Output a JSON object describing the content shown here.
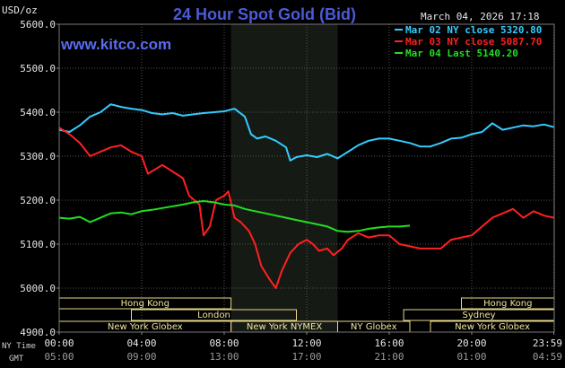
{
  "chart_data": {
    "type": "line",
    "title": "24 Hour Spot Gold (Bid)",
    "site": "www.kitco.com",
    "timestamp": "March 04, 2026 17:18",
    "ylabel": "USD/oz",
    "ylim": [
      4900,
      5600
    ],
    "y_ticks": [
      "5600.0",
      "5500.0",
      "5400.0",
      "5300.0",
      "5200.0",
      "5100.0",
      "5000.0",
      "4900.0"
    ],
    "xlim": [
      0,
      24
    ],
    "x_ticks_ny": [
      "00:00",
      "04:00",
      "08:00",
      "12:00",
      "16:00",
      "20:00",
      "23:59"
    ],
    "x_ticks_gmt": [
      "05:00",
      "09:00",
      "13:00",
      "17:00",
      "21:00",
      "01:00",
      "04:59"
    ],
    "x_tick_hours": [
      0,
      4,
      8,
      12,
      16,
      20,
      23.98
    ],
    "tz_labels": {
      "ny": "NY Time",
      "gmt": "GMT"
    },
    "nymex_window_hours": [
      8.33,
      13.5
    ],
    "grid": true,
    "legend_position": "top-right",
    "series": [
      {
        "name": "Mar 02 NY close 5320.80",
        "color": "#33ccff",
        "points": [
          [
            0,
            5360
          ],
          [
            0.5,
            5355
          ],
          [
            1,
            5370
          ],
          [
            1.5,
            5390
          ],
          [
            2,
            5400
          ],
          [
            2.5,
            5418
          ],
          [
            3,
            5412
          ],
          [
            3.5,
            5408
          ],
          [
            4,
            5405
          ],
          [
            4.5,
            5398
          ],
          [
            5,
            5395
          ],
          [
            5.5,
            5398
          ],
          [
            6,
            5392
          ],
          [
            6.5,
            5395
          ],
          [
            7,
            5398
          ],
          [
            7.5,
            5400
          ],
          [
            8,
            5402
          ],
          [
            8.5,
            5408
          ],
          [
            9,
            5390
          ],
          [
            9.3,
            5350
          ],
          [
            9.6,
            5340
          ],
          [
            10,
            5345
          ],
          [
            10.5,
            5335
          ],
          [
            11,
            5320
          ],
          [
            11.2,
            5290
          ],
          [
            11.5,
            5298
          ],
          [
            12,
            5302
          ],
          [
            12.5,
            5298
          ],
          [
            13,
            5305
          ],
          [
            13.5,
            5295
          ],
          [
            14,
            5310
          ],
          [
            14.5,
            5325
          ],
          [
            15,
            5335
          ],
          [
            15.5,
            5340
          ],
          [
            16,
            5340
          ],
          [
            16.5,
            5335
          ],
          [
            17,
            5330
          ],
          [
            17.5,
            5322
          ],
          [
            18,
            5322
          ],
          [
            18.5,
            5330
          ],
          [
            19,
            5340
          ],
          [
            19.5,
            5342
          ],
          [
            20,
            5350
          ],
          [
            20.5,
            5355
          ],
          [
            21,
            5375
          ],
          [
            21.5,
            5360
          ],
          [
            22,
            5365
          ],
          [
            22.5,
            5370
          ],
          [
            23,
            5368
          ],
          [
            23.5,
            5372
          ],
          [
            24,
            5366
          ]
        ]
      },
      {
        "name": "Mar 03 NY close 5087.70",
        "color": "#ff2020",
        "points": [
          [
            0,
            5365
          ],
          [
            0.5,
            5350
          ],
          [
            1,
            5330
          ],
          [
            1.5,
            5300
          ],
          [
            2,
            5310
          ],
          [
            2.5,
            5320
          ],
          [
            3,
            5325
          ],
          [
            3.5,
            5310
          ],
          [
            4,
            5300
          ],
          [
            4.3,
            5260
          ],
          [
            5,
            5280
          ],
          [
            5.5,
            5265
          ],
          [
            6,
            5250
          ],
          [
            6.3,
            5210
          ],
          [
            6.8,
            5190
          ],
          [
            7,
            5120
          ],
          [
            7.3,
            5140
          ],
          [
            7.6,
            5200
          ],
          [
            8,
            5210
          ],
          [
            8.2,
            5220
          ],
          [
            8.5,
            5160
          ],
          [
            8.8,
            5150
          ],
          [
            9.2,
            5130
          ],
          [
            9.5,
            5100
          ],
          [
            9.8,
            5050
          ],
          [
            10.2,
            5020
          ],
          [
            10.5,
            5000
          ],
          [
            10.8,
            5040
          ],
          [
            11.2,
            5080
          ],
          [
            11.6,
            5100
          ],
          [
            12,
            5110
          ],
          [
            12.3,
            5100
          ],
          [
            12.6,
            5085
          ],
          [
            13,
            5090
          ],
          [
            13.3,
            5075
          ],
          [
            13.7,
            5090
          ],
          [
            14,
            5110
          ],
          [
            14.5,
            5125
          ],
          [
            15,
            5115
          ],
          [
            15.5,
            5120
          ],
          [
            16,
            5120
          ],
          [
            16.5,
            5100
          ],
          [
            17,
            5095
          ],
          [
            17.5,
            5090
          ],
          [
            18,
            5090
          ],
          [
            18.5,
            5090
          ],
          [
            19,
            5110
          ],
          [
            19.5,
            5115
          ],
          [
            20,
            5120
          ],
          [
            20.5,
            5140
          ],
          [
            21,
            5160
          ],
          [
            21.5,
            5170
          ],
          [
            22,
            5180
          ],
          [
            22.5,
            5160
          ],
          [
            23,
            5175
          ],
          [
            23.5,
            5165
          ],
          [
            24,
            5160
          ]
        ]
      },
      {
        "name": "Mar 04 Last 5140.20",
        "color": "#22dd22",
        "points": [
          [
            0,
            5160
          ],
          [
            0.5,
            5158
          ],
          [
            1,
            5162
          ],
          [
            1.5,
            5150
          ],
          [
            2,
            5160
          ],
          [
            2.5,
            5170
          ],
          [
            3,
            5172
          ],
          [
            3.5,
            5168
          ],
          [
            4,
            5175
          ],
          [
            4.5,
            5178
          ],
          [
            5,
            5182
          ],
          [
            5.5,
            5186
          ],
          [
            6,
            5190
          ],
          [
            6.5,
            5195
          ],
          [
            7,
            5198
          ],
          [
            7.5,
            5195
          ],
          [
            8,
            5190
          ],
          [
            8.5,
            5188
          ],
          [
            9,
            5180
          ],
          [
            9.5,
            5175
          ],
          [
            10,
            5170
          ],
          [
            10.5,
            5165
          ],
          [
            11,
            5160
          ],
          [
            11.5,
            5155
          ],
          [
            12,
            5150
          ],
          [
            12.5,
            5145
          ],
          [
            13,
            5140
          ],
          [
            13.5,
            5130
          ],
          [
            14,
            5128
          ],
          [
            14.5,
            5130
          ],
          [
            15,
            5135
          ],
          [
            15.5,
            5138
          ],
          [
            16,
            5140
          ],
          [
            16.5,
            5140
          ],
          [
            17,
            5142
          ]
        ]
      }
    ],
    "markets": [
      {
        "name": "Hong Kong",
        "start": 0,
        "end": 8.33
      },
      {
        "name": "Hong Kong",
        "start": 19.5,
        "end": 24
      },
      {
        "name": "London",
        "start": 3.5,
        "end": 11.5
      },
      {
        "name": "Sydney",
        "start": 16.7,
        "end": 24
      },
      {
        "name": "New York Globex",
        "start": 0,
        "end": 8.33
      },
      {
        "name": "New York NYMEX",
        "start": 8.33,
        "end": 13.5
      },
      {
        "name": "NY Globex",
        "start": 13.5,
        "end": 17
      },
      {
        "name": "New York Globex",
        "start": 18,
        "end": 24
      }
    ]
  }
}
